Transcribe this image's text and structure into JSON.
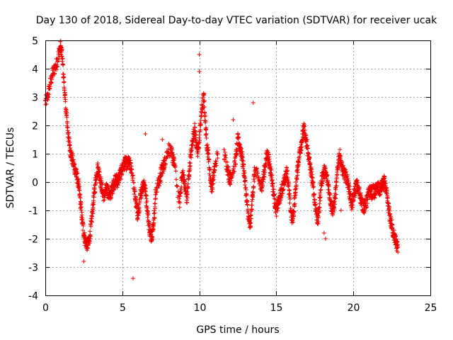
{
  "chart_data": {
    "type": "scatter",
    "title": "Day 130 of 2018, Sidereal Day-to-day VTEC variation (SDTVAR) for receiver ucak",
    "xlabel": "GPS time / hours",
    "ylabel": "SDTVAR / TECUs",
    "xlim": [
      0,
      25
    ],
    "ylim": [
      -4,
      5
    ],
    "x_ticks": [
      "0",
      "5",
      "10",
      "15",
      "20",
      "25"
    ],
    "y_ticks": [
      "-4",
      "-3",
      "-2",
      "-1",
      "0",
      "1",
      "2",
      "3",
      "4",
      "5"
    ],
    "grid": true,
    "marker": "+",
    "series_color": "#ee0000",
    "segments": [
      [
        0.0,
        2.8
      ],
      [
        0.15,
        3.0
      ],
      [
        0.3,
        3.4
      ],
      [
        0.45,
        3.8
      ],
      [
        0.6,
        4.0
      ],
      [
        0.75,
        4.2
      ],
      [
        0.9,
        4.6
      ],
      [
        1.0,
        4.8
      ],
      [
        1.1,
        4.4
      ],
      [
        1.2,
        3.6
      ],
      [
        1.3,
        2.8
      ],
      [
        1.4,
        2.2
      ],
      [
        1.5,
        1.6
      ],
      [
        1.6,
        1.2
      ],
      [
        1.7,
        0.9
      ],
      [
        1.8,
        0.7
      ],
      [
        1.9,
        0.5
      ],
      [
        2.0,
        0.3
      ],
      [
        2.1,
        0.1
      ],
      [
        2.2,
        -0.3
      ],
      [
        2.3,
        -0.8
      ],
      [
        2.4,
        -1.4
      ],
      [
        2.5,
        -1.8
      ],
      [
        2.6,
        -2.1
      ],
      [
        2.7,
        -2.2
      ],
      [
        2.8,
        -2.2
      ],
      [
        2.9,
        -1.9
      ],
      [
        3.0,
        -1.4
      ],
      [
        3.1,
        -0.8
      ],
      [
        3.2,
        -0.3
      ],
      [
        3.3,
        0.2
      ],
      [
        3.4,
        0.5
      ],
      [
        3.5,
        0.3
      ],
      [
        3.6,
        0.0
      ],
      [
        3.7,
        -0.3
      ],
      [
        3.8,
        -0.5
      ],
      [
        3.9,
        -0.4
      ],
      [
        4.0,
        -0.2
      ],
      [
        4.1,
        -0.4
      ],
      [
        4.2,
        -0.5
      ],
      [
        4.3,
        -0.3
      ],
      [
        4.4,
        -0.1
      ],
      [
        4.5,
        0.0
      ],
      [
        4.6,
        0.1
      ],
      [
        4.7,
        0.0
      ],
      [
        4.8,
        0.2
      ],
      [
        4.9,
        0.3
      ],
      [
        5.0,
        0.5
      ],
      [
        5.1,
        0.6
      ],
      [
        5.2,
        0.7
      ],
      [
        5.3,
        0.6
      ],
      [
        5.4,
        0.7
      ],
      [
        5.5,
        0.6
      ],
      [
        5.6,
        0.5
      ],
      [
        5.8,
        -0.4
      ],
      [
        5.9,
        -0.8
      ],
      [
        6.0,
        -1.2
      ],
      [
        6.1,
        -0.9
      ],
      [
        6.2,
        -0.4
      ],
      [
        6.3,
        -0.2
      ],
      [
        6.4,
        0.0
      ],
      [
        6.5,
        -0.3
      ],
      [
        6.6,
        -0.8
      ],
      [
        6.7,
        -1.4
      ],
      [
        6.8,
        -1.8
      ],
      [
        6.9,
        -1.9
      ],
      [
        7.0,
        -1.6
      ],
      [
        7.1,
        -1.0
      ],
      [
        7.2,
        -0.2
      ],
      [
        7.4,
        0.0
      ],
      [
        7.5,
        0.3
      ],
      [
        7.6,
        0.5
      ],
      [
        7.7,
        0.6
      ],
      [
        7.8,
        0.8
      ],
      [
        8.0,
        1.2
      ],
      [
        8.2,
        1.0
      ],
      [
        8.3,
        0.8
      ],
      [
        8.4,
        0.6
      ],
      [
        8.7,
        -0.8
      ],
      [
        8.8,
        -0.2
      ],
      [
        8.9,
        0.3
      ],
      [
        9.0,
        0.1
      ],
      [
        9.1,
        -0.3
      ],
      [
        9.2,
        -0.6
      ],
      [
        9.3,
        0.1
      ],
      [
        9.4,
        0.7
      ],
      [
        9.5,
        1.2
      ],
      [
        9.6,
        1.6
      ],
      [
        9.7,
        1.9
      ],
      [
        9.8,
        1.4
      ],
      [
        9.9,
        1.0
      ],
      [
        10.0,
        1.5
      ],
      [
        10.1,
        2.2
      ],
      [
        10.2,
        2.7
      ],
      [
        10.3,
        3.0
      ],
      [
        10.4,
        2.0
      ],
      [
        10.5,
        1.3
      ],
      [
        10.6,
        0.9
      ],
      [
        10.7,
        0.2
      ],
      [
        10.8,
        -0.2
      ],
      [
        10.9,
        0.1
      ],
      [
        11.0,
        0.5
      ],
      [
        11.2,
        1.0
      ],
      [
        11.6,
        1.0
      ],
      [
        11.8,
        0.6
      ],
      [
        11.9,
        0.3
      ],
      [
        12.0,
        0.1
      ],
      [
        12.1,
        0.3
      ],
      [
        12.3,
        0.6
      ],
      [
        12.4,
        1.0
      ],
      [
        12.5,
        1.5
      ],
      [
        12.6,
        1.3
      ],
      [
        12.7,
        1.1
      ],
      [
        12.8,
        0.8
      ],
      [
        12.9,
        0.4
      ],
      [
        13.0,
        -0.2
      ],
      [
        13.1,
        -0.8
      ],
      [
        13.2,
        -1.3
      ],
      [
        13.3,
        -1.6
      ],
      [
        13.4,
        -0.9
      ],
      [
        13.5,
        -0.2
      ],
      [
        13.6,
        0.4
      ],
      [
        13.8,
        0.2
      ],
      [
        14.0,
        -0.2
      ],
      [
        14.1,
        0.0
      ],
      [
        14.2,
        0.3
      ],
      [
        14.3,
        0.7
      ],
      [
        14.4,
        1.0
      ],
      [
        14.5,
        0.8
      ],
      [
        14.6,
        0.5
      ],
      [
        14.7,
        0.2
      ],
      [
        14.8,
        -0.3
      ],
      [
        14.9,
        -0.7
      ],
      [
        15.0,
        -1.0
      ],
      [
        15.1,
        -0.8
      ],
      [
        15.2,
        -0.6
      ],
      [
        15.3,
        -0.4
      ],
      [
        15.4,
        -0.2
      ],
      [
        15.5,
        0.0
      ],
      [
        15.6,
        0.2
      ],
      [
        15.7,
        0.4
      ],
      [
        15.8,
        -0.2
      ],
      [
        15.9,
        -0.8
      ],
      [
        16.0,
        -1.3
      ],
      [
        16.1,
        -1.2
      ],
      [
        16.2,
        -0.6
      ],
      [
        16.3,
        0.0
      ],
      [
        16.4,
        0.6
      ],
      [
        16.5,
        1.0
      ],
      [
        16.6,
        1.3
      ],
      [
        16.7,
        1.6
      ],
      [
        16.8,
        1.9
      ],
      [
        16.9,
        1.5
      ],
      [
        17.0,
        1.2
      ],
      [
        17.1,
        0.9
      ],
      [
        17.2,
        0.5
      ],
      [
        17.3,
        0.2
      ],
      [
        17.4,
        -0.2
      ],
      [
        17.5,
        -0.7
      ],
      [
        17.6,
        -1.1
      ],
      [
        17.7,
        -1.4
      ],
      [
        17.8,
        -0.8
      ],
      [
        17.9,
        -0.1
      ],
      [
        18.0,
        0.2
      ],
      [
        18.1,
        0.4
      ],
      [
        18.2,
        0.3
      ],
      [
        18.3,
        0.1
      ],
      [
        18.4,
        -0.2
      ],
      [
        18.5,
        -0.6
      ],
      [
        18.6,
        -0.9
      ],
      [
        18.7,
        -1.0
      ],
      [
        18.8,
        -0.6
      ],
      [
        18.9,
        -0.1
      ],
      [
        19.0,
        0.6
      ],
      [
        19.1,
        1.0
      ],
      [
        19.2,
        0.7
      ],
      [
        19.3,
        0.4
      ],
      [
        19.4,
        0.3
      ],
      [
        19.5,
        0.2
      ],
      [
        19.6,
        0.1
      ],
      [
        19.7,
        -0.2
      ],
      [
        19.8,
        -0.5
      ],
      [
        19.9,
        -0.8
      ],
      [
        20.0,
        -0.6
      ],
      [
        20.1,
        -0.3
      ],
      [
        20.2,
        -0.1
      ],
      [
        20.3,
        -0.2
      ],
      [
        20.4,
        -0.4
      ],
      [
        20.5,
        -0.6
      ],
      [
        20.6,
        -0.8
      ],
      [
        20.7,
        -0.9
      ],
      [
        20.8,
        -0.8
      ],
      [
        20.9,
        -0.6
      ],
      [
        21.0,
        -0.4
      ],
      [
        21.1,
        -0.3
      ],
      [
        21.2,
        -0.4
      ],
      [
        21.3,
        -0.3
      ],
      [
        21.4,
        -0.4
      ],
      [
        21.5,
        -0.2
      ],
      [
        21.6,
        -0.2
      ],
      [
        21.7,
        -0.3
      ],
      [
        21.8,
        -0.2
      ],
      [
        21.9,
        -0.1
      ],
      [
        22.0,
        0.0
      ],
      [
        22.1,
        -0.2
      ],
      [
        22.2,
        -0.6
      ],
      [
        22.3,
        -1.0
      ],
      [
        22.4,
        -1.3
      ],
      [
        22.5,
        -1.6
      ],
      [
        22.6,
        -1.8
      ],
      [
        22.7,
        -2.0
      ],
      [
        22.8,
        -2.2
      ],
      [
        22.9,
        -2.3
      ]
    ],
    "isolated_points": [
      [
        1.6,
        1.3
      ],
      [
        2.5,
        -2.8
      ],
      [
        5.7,
        -3.4
      ],
      [
        6.5,
        1.7
      ],
      [
        7.6,
        1.5
      ],
      [
        10.0,
        4.5
      ],
      [
        10.0,
        3.9
      ],
      [
        13.5,
        2.8
      ],
      [
        12.2,
        2.2
      ],
      [
        17.0,
        1.5
      ],
      [
        18.1,
        -1.8
      ],
      [
        18.2,
        -2.0
      ],
      [
        19.2,
        -1.0
      ]
    ]
  }
}
